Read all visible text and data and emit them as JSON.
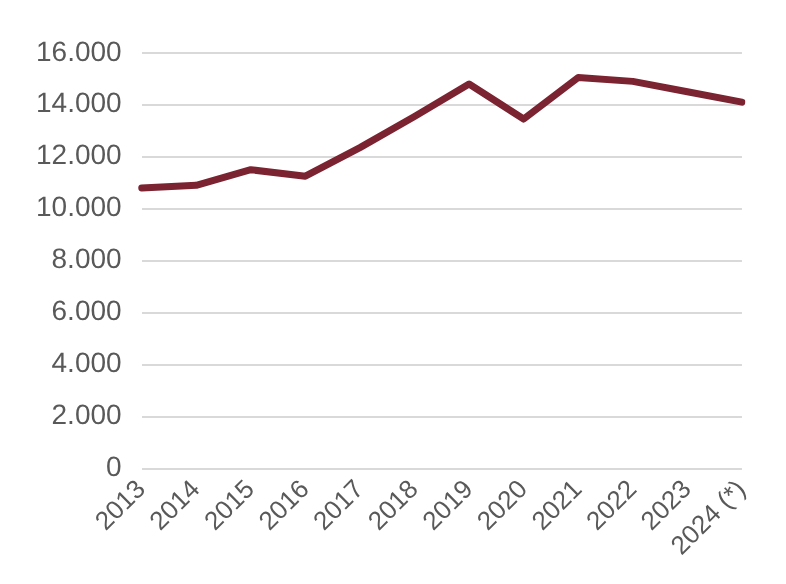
{
  "chart_data": {
    "type": "line",
    "categories": [
      "2013",
      "2014",
      "2015",
      "2016",
      "2017",
      "2018",
      "2019",
      "2020",
      "2021",
      "2022",
      "2023",
      "2024 (*)"
    ],
    "series": [
      {
        "color": "#7b2330",
        "values": [
          10800,
          10900,
          11500,
          11250,
          12350,
          13550,
          14800,
          13450,
          15050,
          14900,
          14500,
          14100
        ]
      }
    ],
    "ylim": [
      0,
      16000
    ],
    "yticks": [
      {
        "value": 0,
        "label": "0"
      },
      {
        "value": 2000,
        "label": "2.000"
      },
      {
        "value": 4000,
        "label": "4.000"
      },
      {
        "value": 6000,
        "label": "6.000"
      },
      {
        "value": 8000,
        "label": "8.000"
      },
      {
        "value": 10000,
        "label": "10.000"
      },
      {
        "value": 12000,
        "label": "12.000"
      },
      {
        "value": 14000,
        "label": "14.000"
      },
      {
        "value": 16000,
        "label": "16.000"
      }
    ],
    "grid": "y",
    "legend": false,
    "marker": "none",
    "line_style": "solid"
  }
}
